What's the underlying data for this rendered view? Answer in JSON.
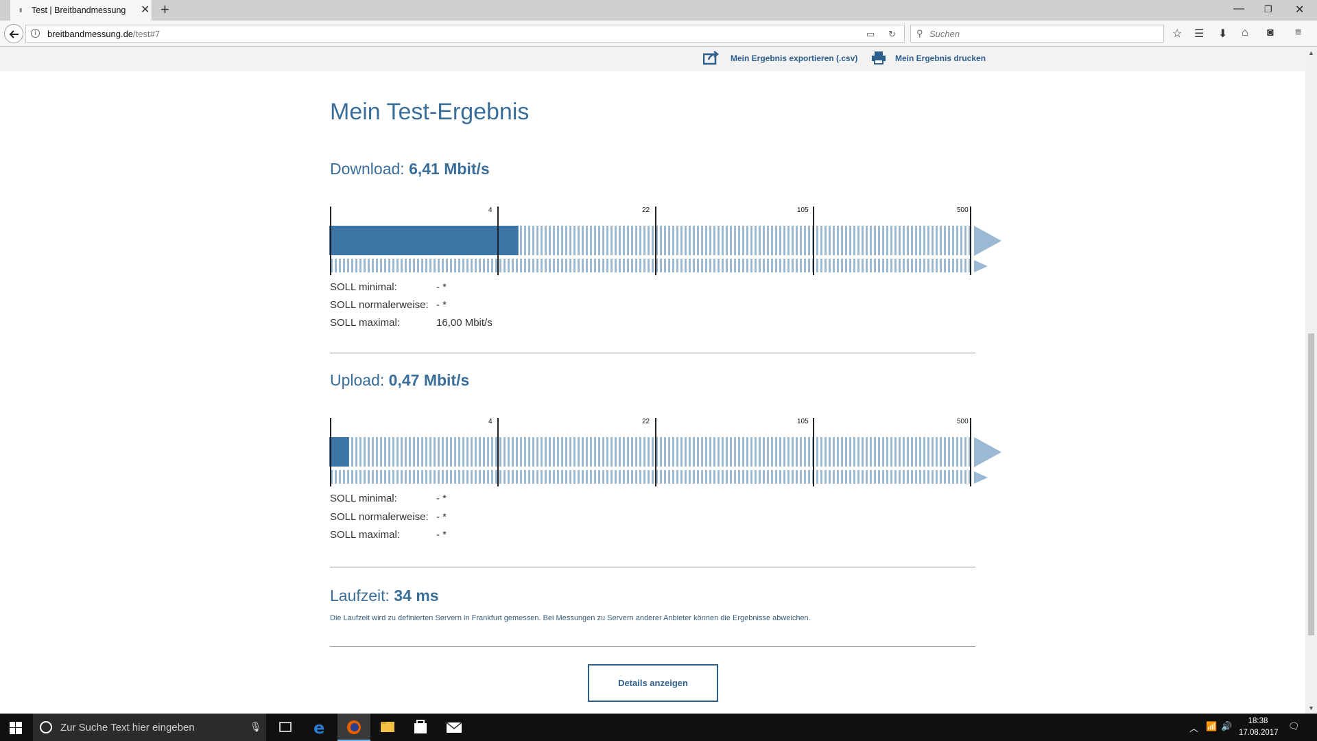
{
  "browser": {
    "tab_title": "Test | Breitbandmessung",
    "url_host": "breitbandmessung.de",
    "url_path": "/test#7",
    "search_placeholder": "Suchen"
  },
  "actions": {
    "export_label": "Mein Ergebnis exportieren (.csv)",
    "print_label": "Mein Ergebnis drucken"
  },
  "page_title": "Mein Test-Ergebnis",
  "scale_labels": [
    "4",
    "22",
    "105",
    "500"
  ],
  "download": {
    "label": "Download:",
    "value": "6,41 Mbit/s",
    "fill_mbit": 6.41,
    "soll": [
      {
        "label": "SOLL minimal:",
        "value": "- *"
      },
      {
        "label": "SOLL normalerweise:",
        "value": "- *"
      },
      {
        "label": "SOLL maximal:",
        "value": "16,00 Mbit/s"
      }
    ]
  },
  "upload": {
    "label": "Upload:",
    "value": "0,47 Mbit/s",
    "fill_mbit": 0.47,
    "soll": [
      {
        "label": "SOLL minimal:",
        "value": "- *"
      },
      {
        "label": "SOLL normalerweise:",
        "value": "- *"
      },
      {
        "label": "SOLL maximal:",
        "value": "- *"
      }
    ]
  },
  "latency": {
    "label": "Laufzeit:",
    "value": "34 ms",
    "note": "Die Laufzeit wird zu definierten Servern in Frankfurt gemessen. Bei Messungen zu Servern anderer Anbieter können die Ergebnisse abweichen."
  },
  "details_button": "Details anzeigen",
  "taskbar": {
    "search_placeholder": "Zur Suche Text hier eingeben",
    "time": "18:38",
    "date": "17.08.2017"
  },
  "colors": {
    "accent": "#2e5e8c",
    "heading": "#3a6e9a",
    "bar_fill": "#3b76a6",
    "bar_stripe": "#9bb9d3"
  }
}
